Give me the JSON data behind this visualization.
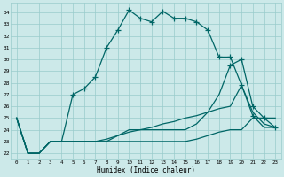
{
  "xlabel": "Humidex (Indice chaleur)",
  "xlim": [
    -0.5,
    23.5
  ],
  "ylim": [
    21.5,
    34.8
  ],
  "xticks": [
    0,
    1,
    2,
    3,
    4,
    5,
    6,
    7,
    8,
    9,
    10,
    11,
    12,
    13,
    14,
    15,
    16,
    17,
    18,
    19,
    20,
    21,
    22,
    23
  ],
  "yticks": [
    22,
    23,
    24,
    25,
    26,
    27,
    28,
    29,
    30,
    31,
    32,
    33,
    34
  ],
  "bg_color": "#cce9e9",
  "grid_color": "#99cccc",
  "line_color": "#006666",
  "line1_y": [
    25,
    22,
    22,
    23,
    23,
    27,
    27.5,
    28.5,
    31,
    32.5,
    34.2,
    33.5,
    33.2,
    34.1,
    33.5,
    33.5,
    33.2,
    32.5,
    30.2,
    30.2,
    27.8,
    25.2,
    24.2,
    24.2
  ],
  "line1_markers": [
    5,
    6,
    7,
    8,
    9,
    10,
    11,
    12,
    13,
    14,
    15,
    16,
    17,
    18,
    19,
    20,
    21
  ],
  "line2_y": [
    25,
    22,
    22,
    23,
    23,
    23,
    23,
    23,
    23,
    23.5,
    24,
    24,
    24,
    24,
    24,
    24,
    24.5,
    25.5,
    27,
    29.5,
    30,
    26,
    25,
    24.2
  ],
  "line2_markers": [
    19,
    20,
    21,
    22,
    23
  ],
  "line3_y": [
    25,
    22,
    22,
    23,
    23,
    23,
    23,
    23.0,
    23.2,
    23.5,
    23.8,
    24.0,
    24.2,
    24.5,
    24.7,
    25.0,
    25.2,
    25.5,
    25.8,
    26.0,
    27.8,
    25.5,
    24.5,
    24.2
  ],
  "line4_y": [
    25,
    22,
    22,
    23,
    23,
    23,
    23,
    23,
    23,
    23,
    23,
    23,
    23,
    23,
    23,
    23,
    23.2,
    23.5,
    23.8,
    24.0,
    24.0,
    25.0,
    25.0,
    25.0
  ]
}
